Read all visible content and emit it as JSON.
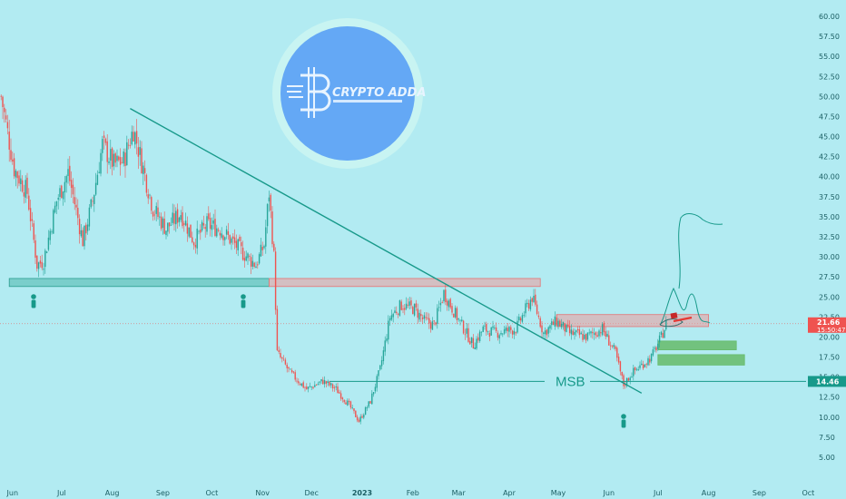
{
  "colors": {
    "background": "#b2ebf2",
    "up_candle": "#26a69a",
    "down_candle": "#ef5350",
    "trendline": "#17998a",
    "support_zone": "#4db6ac",
    "resistance_zone": "#ef9a9a",
    "target_zone": "#66bb6a",
    "logo_circle": "#64a8f5",
    "price_tag": "#ef5350",
    "msb_tag": "#17998a"
  },
  "logo": {
    "text": "CRYPTO ADDA",
    "icon": "crypto-adda-logo-icon"
  },
  "annotations": {
    "msb_label": "MSB",
    "current_price": "21.66",
    "countdown": "15:50:47",
    "msb_price": "14.46",
    "person_marker_icon": "person-icon"
  },
  "chart_data": {
    "type": "candlestick",
    "title": "",
    "xlabel": "",
    "ylabel": "",
    "y_axis": {
      "position": "right",
      "ylim": [
        3.5,
        62
      ],
      "ticks": [
        "60.00",
        "57.50",
        "55.00",
        "52.50",
        "50.00",
        "47.50",
        "45.00",
        "42.50",
        "40.00",
        "37.50",
        "35.00",
        "32.50",
        "30.00",
        "27.50",
        "25.00",
        "22.50",
        "20.00",
        "17.50",
        "15.00",
        "12.50",
        "10.00",
        "7.50",
        "5.00"
      ]
    },
    "x_axis": {
      "ticks": [
        {
          "label": "Jun"
        },
        {
          "label": "Jul"
        },
        {
          "label": "Aug"
        },
        {
          "label": "Sep"
        },
        {
          "label": "Oct"
        },
        {
          "label": "Nov"
        },
        {
          "label": "Dec"
        },
        {
          "label": "2023",
          "bold": true
        },
        {
          "label": "Feb"
        },
        {
          "label": "Mar"
        },
        {
          "label": "Apr"
        },
        {
          "label": "May"
        },
        {
          "label": "Jun"
        },
        {
          "label": "Jul"
        },
        {
          "label": "Aug"
        },
        {
          "label": "Sep"
        },
        {
          "label": "Oct"
        }
      ]
    },
    "price_path": [
      {
        "d": "2022-05-25",
        "p": 50.0
      },
      {
        "d": "2022-06-02",
        "p": 41.0
      },
      {
        "d": "2022-06-10",
        "p": 38.0
      },
      {
        "d": "2022-06-16",
        "p": 29.0
      },
      {
        "d": "2022-06-20",
        "p": 29.5
      },
      {
        "d": "2022-06-28",
        "p": 37.0
      },
      {
        "d": "2022-07-05",
        "p": 40.5
      },
      {
        "d": "2022-07-14",
        "p": 32.0
      },
      {
        "d": "2022-07-20",
        "p": 37.0
      },
      {
        "d": "2022-07-26",
        "p": 44.0
      },
      {
        "d": "2022-08-02",
        "p": 41.5
      },
      {
        "d": "2022-08-08",
        "p": 42.0
      },
      {
        "d": "2022-08-14",
        "p": 46.0
      },
      {
        "d": "2022-08-20",
        "p": 41.0
      },
      {
        "d": "2022-08-26",
        "p": 36.0
      },
      {
        "d": "2022-09-03",
        "p": 33.5
      },
      {
        "d": "2022-09-12",
        "p": 35.5
      },
      {
        "d": "2022-09-20",
        "p": 32.0
      },
      {
        "d": "2022-09-28",
        "p": 34.0
      },
      {
        "d": "2022-10-06",
        "p": 33.5
      },
      {
        "d": "2022-10-13",
        "p": 32.0
      },
      {
        "d": "2022-10-20",
        "p": 30.5
      },
      {
        "d": "2022-10-28",
        "p": 29.0
      },
      {
        "d": "2022-11-02",
        "p": 31.5
      },
      {
        "d": "2022-11-05",
        "p": 38.0
      },
      {
        "d": "2022-11-08",
        "p": 30.0
      },
      {
        "d": "2022-11-10",
        "p": 18.0
      },
      {
        "d": "2022-11-18",
        "p": 15.5
      },
      {
        "d": "2022-11-28",
        "p": 13.5
      },
      {
        "d": "2022-12-08",
        "p": 14.5
      },
      {
        "d": "2022-12-16",
        "p": 13.5
      },
      {
        "d": "2022-12-24",
        "p": 11.5
      },
      {
        "d": "2022-12-30",
        "p": 9.5
      },
      {
        "d": "2023-01-06",
        "p": 12.0
      },
      {
        "d": "2023-01-12",
        "p": 16.0
      },
      {
        "d": "2023-01-18",
        "p": 22.5
      },
      {
        "d": "2023-01-25",
        "p": 24.0
      },
      {
        "d": "2023-02-02",
        "p": 23.5
      },
      {
        "d": "2023-02-08",
        "p": 22.0
      },
      {
        "d": "2023-02-14",
        "p": 21.5
      },
      {
        "d": "2023-02-20",
        "p": 25.5
      },
      {
        "d": "2023-02-28",
        "p": 22.5
      },
      {
        "d": "2023-03-10",
        "p": 19.0
      },
      {
        "d": "2023-03-16",
        "p": 21.0
      },
      {
        "d": "2023-03-24",
        "p": 20.5
      },
      {
        "d": "2023-04-05",
        "p": 21.0
      },
      {
        "d": "2023-04-15",
        "p": 25.0
      },
      {
        "d": "2023-04-22",
        "p": 20.5
      },
      {
        "d": "2023-04-30",
        "p": 22.0
      },
      {
        "d": "2023-05-08",
        "p": 20.5
      },
      {
        "d": "2023-05-18",
        "p": 20.0
      },
      {
        "d": "2023-05-28",
        "p": 21.0
      },
      {
        "d": "2023-06-05",
        "p": 18.0
      },
      {
        "d": "2023-06-10",
        "p": 14.0
      },
      {
        "d": "2023-06-15",
        "p": 15.5
      },
      {
        "d": "2023-06-21",
        "p": 16.5
      },
      {
        "d": "2023-06-27",
        "p": 17.5
      },
      {
        "d": "2023-07-03",
        "p": 20.0
      },
      {
        "d": "2023-07-06",
        "p": 21.66
      }
    ],
    "trendline": [
      {
        "d": "2022-08-12",
        "p": 48.5
      },
      {
        "d": "2023-06-21",
        "p": 13.0
      }
    ],
    "msb_level": 14.46,
    "zones": [
      {
        "name": "support",
        "from": "2022-05-30",
        "to": "2022-11-05",
        "low": 26.3,
        "high": 27.3
      },
      {
        "name": "resistance",
        "from": "2022-11-05",
        "to": "2023-04-20",
        "low": 26.3,
        "high": 27.3
      },
      {
        "name": "resistance",
        "from": "2023-04-30",
        "to": "2023-08-01",
        "low": 21.3,
        "high": 22.8
      },
      {
        "name": "target",
        "from": "2023-07-01",
        "to": "2023-08-18",
        "low": 18.4,
        "high": 19.5
      },
      {
        "name": "target",
        "from": "2023-07-01",
        "to": "2023-08-23",
        "low": 16.5,
        "high": 17.8
      }
    ],
    "grid": false,
    "legend": "none"
  }
}
